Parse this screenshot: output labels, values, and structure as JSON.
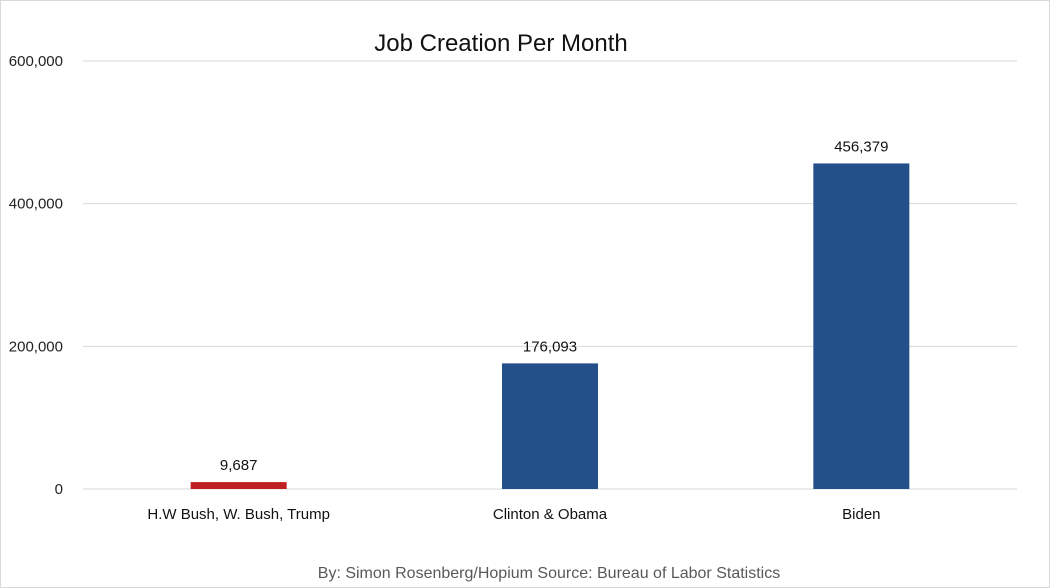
{
  "chart_data": {
    "type": "bar",
    "title": "Job Creation Per Month",
    "categories": [
      "H.W Bush, W. Bush, Trump",
      "Clinton & Obama",
      "Biden"
    ],
    "values": [
      9687,
      176093,
      456379
    ],
    "value_labels": [
      "9,687",
      "176,093",
      "456,379"
    ],
    "bar_colors": [
      "#c0201f",
      "#24508a",
      "#24508a"
    ],
    "ylim": [
      0,
      600000
    ],
    "yticks": [
      0,
      200000,
      400000,
      600000
    ],
    "ytick_labels": [
      "0",
      "200,000",
      "400,000",
      "600,000"
    ],
    "xlabel": "",
    "ylabel": "",
    "grid": true,
    "gridline_color": "#d9d9d9",
    "footer": "By: Simon Rosenberg/Hopium Source: Bureau of Labor Statistics"
  }
}
